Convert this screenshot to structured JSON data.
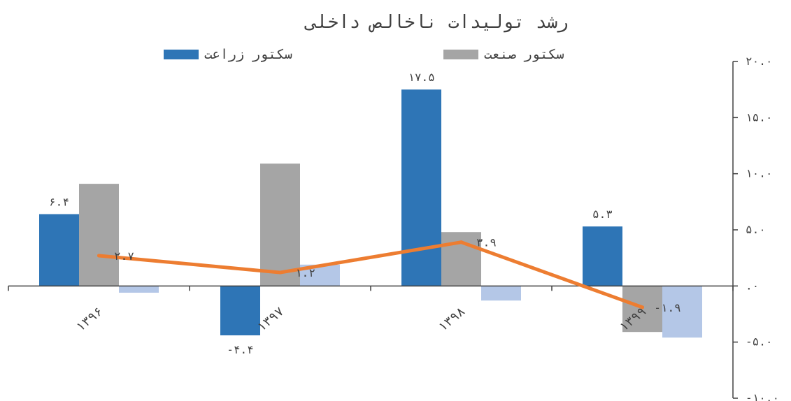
{
  "chart_data": {
    "type": "bar",
    "title": "رشد تولیدات ناخالص داخلی",
    "categories": [
      "۱۳۹۶",
      "۱۳۹۷",
      "۱۳۹۸",
      "۱۳۹۹"
    ],
    "series": [
      {
        "name": "سکتور زراعت",
        "kind": "bar",
        "color": "#2E75B6",
        "values": [
          6.4,
          -4.4,
          17.5,
          5.3
        ],
        "labels": [
          "۶.۴",
          "-۴.۴",
          "۱۷.۵",
          "۵.۳"
        ]
      },
      {
        "name": "سکتور صنعت",
        "kind": "bar",
        "color": "#A5A5A5",
        "values": [
          9.1,
          10.9,
          4.8,
          -4.1
        ]
      },
      {
        "kind": "bar",
        "color": "#B4C7E7",
        "values": [
          -0.6,
          1.9,
          -1.3,
          -4.6
        ]
      },
      {
        "kind": "line",
        "color": "#ED7D31",
        "values": [
          2.7,
          1.2,
          3.9,
          -1.9
        ],
        "labels": [
          "۲.۷",
          "۱.۲",
          "۳.۹",
          "-۱.۹"
        ]
      }
    ],
    "ylim": [
      -10,
      20
    ],
    "yticks": [
      20,
      15,
      10,
      5,
      0,
      -5,
      -10
    ],
    "ytick_labels": [
      "۲۰.۰",
      "۱۵.۰",
      "۱۰.۰",
      "۵.۰",
      ".۰",
      "-۵.۰",
      "-۱۰.۰"
    ],
    "y_axis_position": "right",
    "legend_position": "top",
    "grid": false
  }
}
